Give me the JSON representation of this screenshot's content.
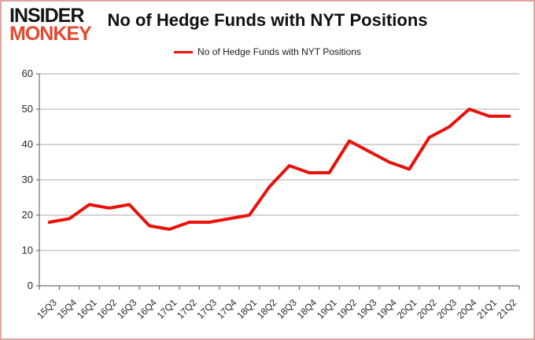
{
  "page": {
    "border_color": "#e2a3a3",
    "background": "#ffffff"
  },
  "logo": {
    "line1": "INSIDER",
    "line2": "MONKEY",
    "line1_color": "#141414",
    "line2_color": "#e2492f"
  },
  "header": {
    "title": "No of Hedge Funds with NYT Positions"
  },
  "legend": {
    "label": "No of Hedge Funds with NYT Positions",
    "swatch_color": "#e8120c"
  },
  "chart_data": {
    "type": "line",
    "title": "No of Hedge Funds with NYT Positions",
    "categories": [
      "15Q3",
      "15Q4",
      "16Q1",
      "16Q2",
      "16Q3",
      "16Q4",
      "17Q1",
      "17Q2",
      "17Q3",
      "17Q4",
      "18Q1",
      "18Q2",
      "18Q3",
      "18Q4",
      "19Q1",
      "19Q2",
      "19Q3",
      "19Q4",
      "20Q1",
      "20Q2",
      "20Q3",
      "20Q4",
      "21Q1",
      "21Q2"
    ],
    "series": [
      {
        "name": "No of Hedge Funds with NYT Positions",
        "color": "#e8120c",
        "values": [
          18,
          19,
          23,
          22,
          23,
          17,
          16,
          18,
          18,
          19,
          20,
          28,
          34,
          32,
          32,
          41,
          38,
          35,
          33,
          42,
          45,
          50,
          48,
          48
        ]
      }
    ],
    "xlabel": "",
    "ylabel": "",
    "ylim": [
      0,
      60
    ],
    "yticks": [
      0,
      10,
      20,
      30,
      40,
      50,
      60
    ],
    "grid": true,
    "legend_position": "top",
    "gridline_color": "#a8a8a8",
    "axis_color": "#6e6e6e",
    "tick_label_color": "#262626"
  }
}
